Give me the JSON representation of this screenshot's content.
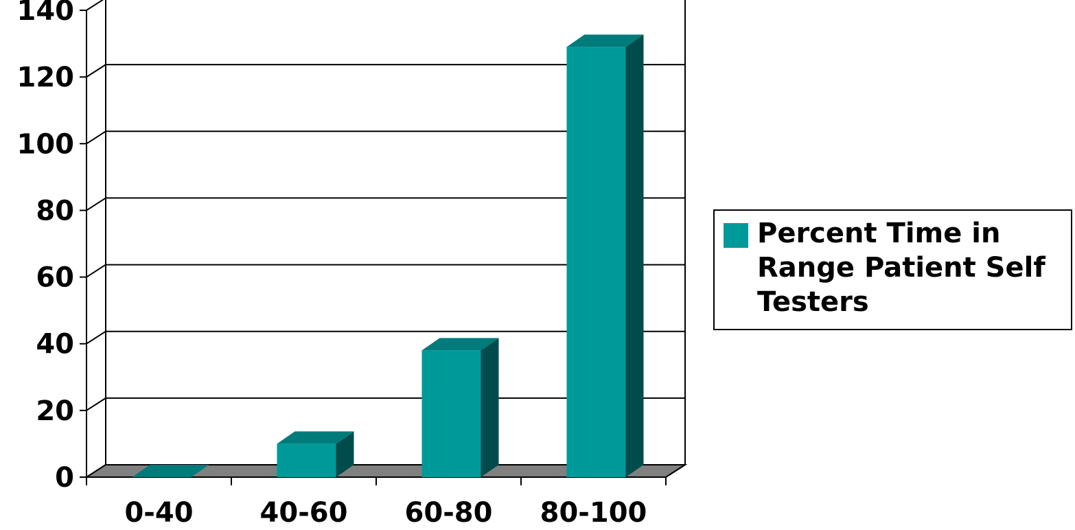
{
  "chart_data": {
    "type": "bar",
    "categories": [
      "0-40",
      "40-60",
      "60-80",
      "80-100"
    ],
    "series": [
      {
        "name": "Percent Time in Range Patient Self Testers",
        "values": [
          0,
          10,
          38,
          129
        ]
      }
    ],
    "ylim": [
      0,
      140
    ],
    "yticks": [
      "0",
      "20",
      "40",
      "60",
      "80",
      "100",
      "120",
      "140"
    ],
    "grid": true,
    "legend_position": "right",
    "colors": {
      "bar_front": "#009999",
      "bar_top": "#007b7b",
      "bar_side": "#004c4c",
      "floor": "#808080"
    }
  }
}
